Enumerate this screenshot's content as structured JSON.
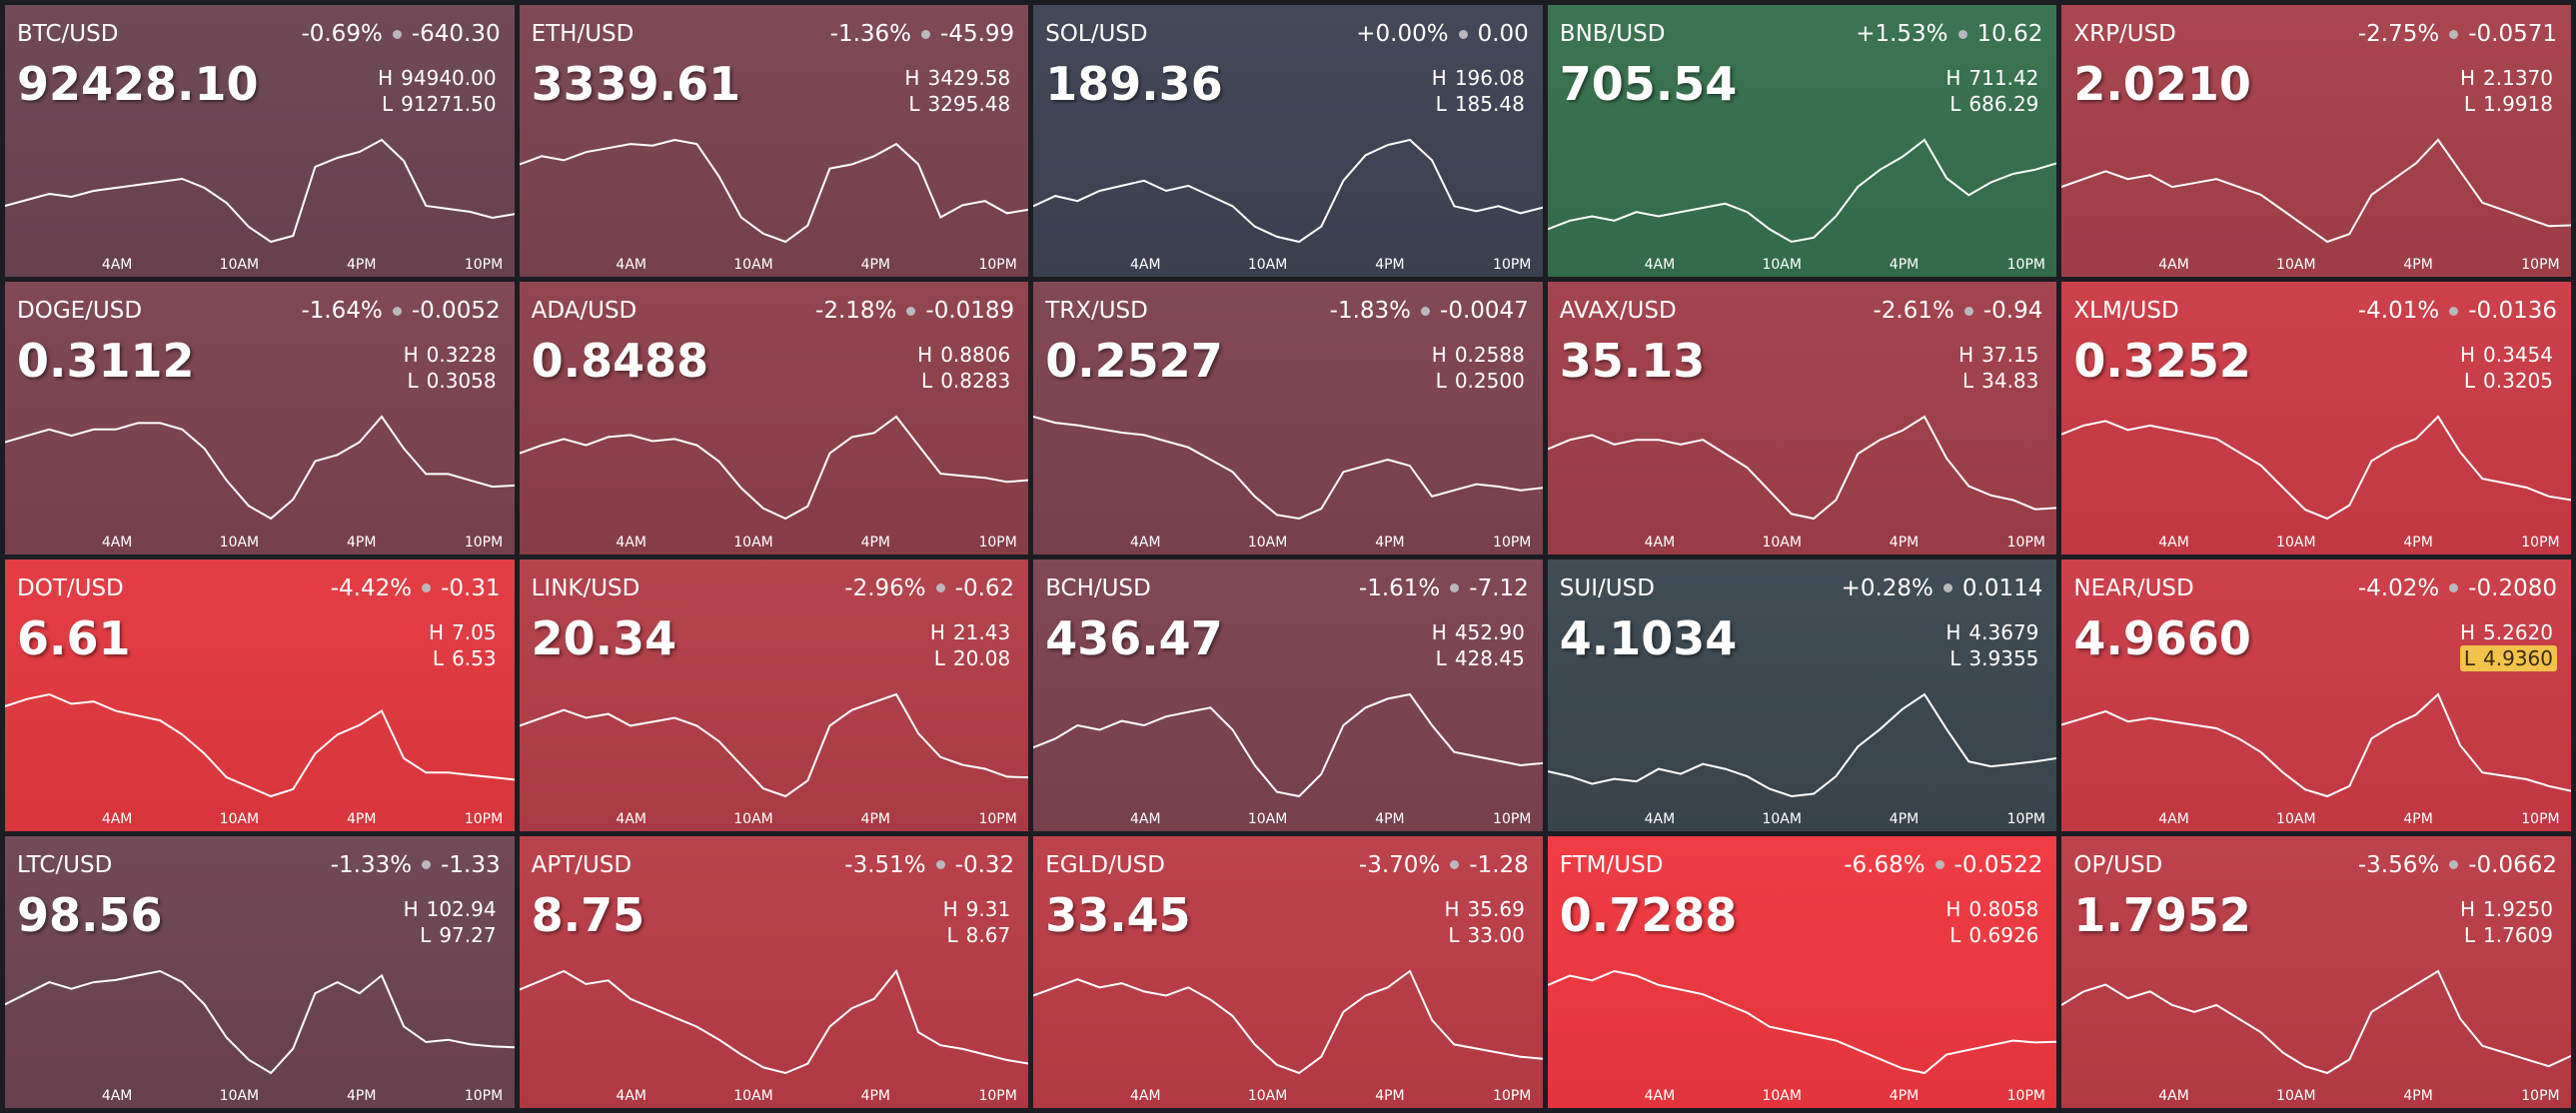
{
  "high_label": "H",
  "low_label": "L",
  "time_labels": [
    "4AM",
    "10AM",
    "4PM",
    "10PM"
  ],
  "tiles": [
    {
      "pair": "BTC/USD",
      "change_pct": "-0.69%",
      "change": "-640.30",
      "price": "92428.10",
      "high": "94940.00",
      "low": "91271.50",
      "color": "#6c4452",
      "series": [
        92700,
        92900,
        93100,
        93000,
        93200,
        93300,
        93400,
        93500,
        93600,
        93300,
        92800,
        92000,
        91500,
        91700,
        94000,
        94300,
        94500,
        94900,
        94200,
        92700,
        92600,
        92500,
        92300,
        92428
      ]
    },
    {
      "pair": "ETH/USD",
      "change_pct": "-1.36%",
      "change": "-45.99",
      "price": "3339.61",
      "high": "3429.58",
      "low": "3295.48",
      "color": "#7a4450",
      "series": [
        3395,
        3405,
        3400,
        3410,
        3415,
        3420,
        3418,
        3425,
        3420,
        3380,
        3330,
        3310,
        3300,
        3320,
        3390,
        3395,
        3405,
        3420,
        3395,
        3330,
        3345,
        3350,
        3335,
        3339.61
      ]
    },
    {
      "pair": "SOL/USD",
      "change_pct": "+0.00%",
      "change": "0.00",
      "price": "189.36",
      "high": "196.08",
      "low": "185.48",
      "color": "#3e4254",
      "series": [
        189.5,
        190.5,
        190.0,
        191.0,
        191.5,
        192.0,
        191.0,
        191.5,
        190.5,
        189.5,
        187.5,
        186.5,
        186.0,
        187.5,
        192.0,
        194.5,
        195.5,
        196.0,
        194.0,
        189.5,
        189.0,
        189.5,
        188.8,
        189.36
      ]
    },
    {
      "pair": "BNB/USD",
      "change_pct": "+1.53%",
      "change": "10.62",
      "price": "705.54",
      "high": "711.42",
      "low": "686.29",
      "color": "#36704d",
      "series": [
        690,
        692,
        693,
        692,
        694,
        693,
        694,
        695,
        696,
        694,
        690,
        687,
        688,
        693,
        700,
        704,
        707,
        711,
        702,
        698,
        701,
        703,
        704,
        705.54
      ]
    },
    {
      "pair": "XRP/USD",
      "change_pct": "-2.75%",
      "change": "-0.0571",
      "price": "2.0210",
      "high": "2.1370",
      "low": "1.9918",
      "color": "#a6404a",
      "series": [
        2.07,
        2.08,
        2.09,
        2.08,
        2.085,
        2.07,
        2.075,
        2.08,
        2.07,
        2.06,
        2.04,
        2.02,
        2.0,
        2.01,
        2.06,
        2.08,
        2.1,
        2.13,
        2.09,
        2.05,
        2.04,
        2.03,
        2.02,
        2.021
      ]
    },
    {
      "pair": "DOGE/USD",
      "change_pct": "-1.64%",
      "change": "-0.0052",
      "price": "0.3112",
      "high": "0.3228",
      "low": "0.3058",
      "color": "#7c4350",
      "series": [
        0.318,
        0.319,
        0.32,
        0.319,
        0.32,
        0.32,
        0.321,
        0.321,
        0.32,
        0.317,
        0.312,
        0.308,
        0.306,
        0.309,
        0.315,
        0.316,
        0.318,
        0.322,
        0.317,
        0.313,
        0.313,
        0.312,
        0.311,
        0.3112
      ]
    },
    {
      "pair": "ADA/USD",
      "change_pct": "-2.18%",
      "change": "-0.0189",
      "price": "0.8488",
      "high": "0.8806",
      "low": "0.8283",
      "color": "#8e404a",
      "series": [
        0.862,
        0.866,
        0.869,
        0.866,
        0.87,
        0.871,
        0.868,
        0.869,
        0.866,
        0.858,
        0.845,
        0.835,
        0.83,
        0.836,
        0.862,
        0.87,
        0.872,
        0.88,
        0.866,
        0.852,
        0.851,
        0.85,
        0.848,
        0.8488
      ]
    },
    {
      "pair": "TRX/USD",
      "change_pct": "-1.83%",
      "change": "-0.0047",
      "price": "0.2527",
      "high": "0.2588",
      "low": "0.2500",
      "color": "#7e4350",
      "series": [
        0.2585,
        0.258,
        0.2578,
        0.2575,
        0.2572,
        0.257,
        0.2565,
        0.256,
        0.255,
        0.254,
        0.252,
        0.2505,
        0.2502,
        0.251,
        0.254,
        0.2545,
        0.255,
        0.2545,
        0.252,
        0.2525,
        0.253,
        0.2528,
        0.2525,
        0.2527
      ]
    },
    {
      "pair": "AVAX/USD",
      "change_pct": "-2.61%",
      "change": "-0.94",
      "price": "35.13",
      "high": "37.15",
      "low": "34.83",
      "color": "#a03f49",
      "series": [
        36.4,
        36.6,
        36.7,
        36.5,
        36.6,
        36.6,
        36.5,
        36.6,
        36.3,
        36.0,
        35.5,
        35.0,
        34.9,
        35.3,
        36.3,
        36.6,
        36.8,
        37.1,
        36.2,
        35.6,
        35.4,
        35.3,
        35.1,
        35.13
      ]
    },
    {
      "pair": "XLM/USD",
      "change_pct": "-4.01%",
      "change": "-0.0136",
      "price": "0.3252",
      "high": "0.3454",
      "low": "0.3205",
      "color": "#cb3b45",
      "series": [
        0.34,
        0.342,
        0.343,
        0.341,
        0.342,
        0.341,
        0.34,
        0.339,
        0.336,
        0.333,
        0.328,
        0.323,
        0.321,
        0.324,
        0.334,
        0.337,
        0.339,
        0.344,
        0.336,
        0.33,
        0.329,
        0.328,
        0.326,
        0.3252
      ]
    },
    {
      "pair": "DOT/USD",
      "change_pct": "-4.42%",
      "change": "-0.31",
      "price": "6.61",
      "high": "7.05",
      "low": "6.53",
      "color": "#e3383f",
      "series": [
        6.92,
        6.95,
        6.97,
        6.93,
        6.94,
        6.9,
        6.88,
        6.86,
        6.8,
        6.72,
        6.62,
        6.58,
        6.54,
        6.57,
        6.72,
        6.8,
        6.84,
        6.9,
        6.7,
        6.64,
        6.64,
        6.63,
        6.62,
        6.61
      ]
    },
    {
      "pair": "LINK/USD",
      "change_pct": "-2.96%",
      "change": "-0.62",
      "price": "20.34",
      "high": "21.43",
      "low": "20.08",
      "color": "#b23e47",
      "series": [
        21.0,
        21.1,
        21.2,
        21.1,
        21.15,
        21.0,
        21.05,
        21.1,
        21.0,
        20.8,
        20.5,
        20.2,
        20.1,
        20.3,
        21.0,
        21.2,
        21.3,
        21.4,
        20.9,
        20.6,
        20.5,
        20.45,
        20.35,
        20.34
      ]
    },
    {
      "pair": "BCH/USD",
      "change_pct": "-1.61%",
      "change": "-7.12",
      "price": "436.47",
      "high": "452.90",
      "low": "428.45",
      "color": "#7c4350",
      "series": [
        440,
        442,
        445,
        444,
        446,
        445,
        447,
        448,
        449,
        444,
        436,
        430,
        429,
        434,
        445,
        449,
        451,
        452,
        445,
        439,
        438,
        437,
        436,
        436.47
      ]
    },
    {
      "pair": "SUI/USD",
      "change_pct": "+0.28%",
      "change": "0.0114",
      "price": "4.1034",
      "high": "4.3679",
      "low": "3.9355",
      "color": "#3b4750",
      "series": [
        4.05,
        4.03,
        4.0,
        4.02,
        4.01,
        4.06,
        4.04,
        4.08,
        4.06,
        4.03,
        3.98,
        3.95,
        3.96,
        4.03,
        4.15,
        4.22,
        4.3,
        4.36,
        4.22,
        4.09,
        4.07,
        4.08,
        4.09,
        4.1034
      ]
    },
    {
      "pair": "NEAR/USD",
      "change_pct": "-4.02%",
      "change": "-0.2080",
      "price": "4.9660",
      "high": "5.2620",
      "low": "4.9360",
      "color": "#cb3b45",
      "low_highlight": true,
      "series": [
        5.16,
        5.18,
        5.2,
        5.17,
        5.18,
        5.17,
        5.16,
        5.15,
        5.12,
        5.08,
        5.02,
        4.97,
        4.95,
        4.98,
        5.12,
        5.16,
        5.19,
        5.25,
        5.1,
        5.02,
        5.01,
        5.0,
        4.98,
        4.966
      ]
    },
    {
      "pair": "LTC/USD",
      "change_pct": "-1.33%",
      "change": "-1.33",
      "price": "98.56",
      "high": "102.94",
      "low": "97.27",
      "color": "#6d4452",
      "series": [
        100.5,
        101.0,
        101.5,
        101.2,
        101.5,
        101.6,
        101.8,
        102.0,
        101.5,
        100.5,
        99.0,
        98.0,
        97.4,
        98.5,
        101.0,
        101.5,
        101.0,
        101.8,
        99.5,
        98.8,
        98.9,
        98.7,
        98.6,
        98.56
      ]
    },
    {
      "pair": "APT/USD",
      "change_pct": "-3.51%",
      "change": "-0.32",
      "price": "8.75",
      "high": "9.31",
      "low": "8.67",
      "color": "#b83c46",
      "series": [
        9.15,
        9.2,
        9.25,
        9.18,
        9.2,
        9.1,
        9.05,
        9.0,
        8.95,
        8.88,
        8.8,
        8.73,
        8.7,
        8.75,
        8.95,
        9.05,
        9.1,
        9.25,
        8.92,
        8.85,
        8.83,
        8.8,
        8.77,
        8.75
      ]
    },
    {
      "pair": "EGLD/USD",
      "change_pct": "-3.70%",
      "change": "-1.28",
      "price": "33.45",
      "high": "35.69",
      "low": "33.00",
      "color": "#bb3c46",
      "series": [
        35.0,
        35.2,
        35.4,
        35.2,
        35.3,
        35.1,
        35.0,
        35.2,
        34.9,
        34.5,
        33.8,
        33.3,
        33.1,
        33.5,
        34.6,
        35.0,
        35.2,
        35.6,
        34.4,
        33.8,
        33.7,
        33.6,
        33.5,
        33.45
      ]
    },
    {
      "pair": "FTM/USD",
      "change_pct": "-6.68%",
      "change": "-0.0522",
      "price": "0.7288",
      "high": "0.8058",
      "low": "0.6926",
      "color": "#f0373f",
      "series": [
        0.79,
        0.8,
        0.795,
        0.805,
        0.8,
        0.79,
        0.785,
        0.78,
        0.77,
        0.76,
        0.745,
        0.74,
        0.735,
        0.73,
        0.72,
        0.71,
        0.7,
        0.695,
        0.715,
        0.72,
        0.725,
        0.73,
        0.728,
        0.7288
      ]
    },
    {
      "pair": "OP/USD",
      "change_pct": "-3.56%",
      "change": "-0.0662",
      "price": "1.7952",
      "high": "1.9250",
      "low": "1.7609",
      "color": "#bb3c46",
      "series": [
        1.87,
        1.89,
        1.9,
        1.88,
        1.89,
        1.87,
        1.86,
        1.87,
        1.85,
        1.83,
        1.8,
        1.78,
        1.77,
        1.79,
        1.86,
        1.88,
        1.9,
        1.92,
        1.85,
        1.81,
        1.8,
        1.79,
        1.78,
        1.7952
      ]
    }
  ]
}
